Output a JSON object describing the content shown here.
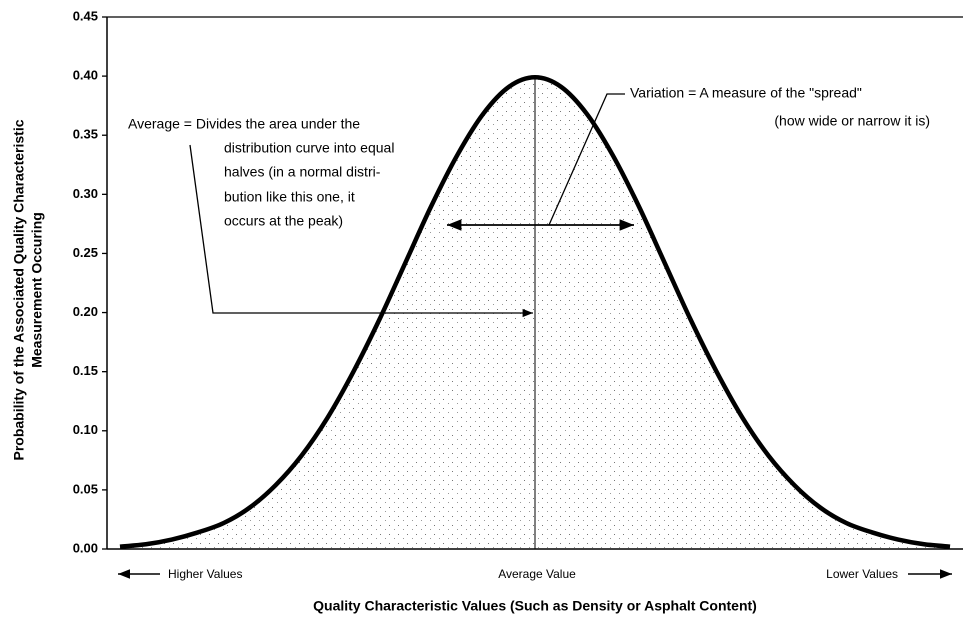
{
  "chart_data": {
    "type": "line",
    "x_label": "Quality Characteristic Values (Such as Density or Asphalt Content)",
    "y_label": [
      "Probability of the Associated Quality Characteristic",
      "Measurement Occuring"
    ],
    "x": [
      -3.2,
      -3.0,
      -2.8,
      -2.6,
      -2.4,
      -2.2,
      -2.0,
      -1.8,
      -1.6,
      -1.4,
      -1.2,
      -1.0,
      -0.8,
      -0.6,
      -0.4,
      -0.2,
      0,
      0.2,
      0.4,
      0.6,
      0.8,
      1.0,
      1.2,
      1.4,
      1.6,
      1.8,
      2.0,
      2.2,
      2.4,
      2.6,
      2.8,
      3.0,
      3.2
    ],
    "series": [
      {
        "color": "#000000",
        "values": [
          0.002,
          0.004,
          0.008,
          0.014,
          0.022,
          0.035,
          0.054,
          0.079,
          0.111,
          0.15,
          0.194,
          0.242,
          0.29,
          0.333,
          0.368,
          0.391,
          0.399,
          0.391,
          0.368,
          0.333,
          0.29,
          0.242,
          0.194,
          0.15,
          0.111,
          0.079,
          0.054,
          0.035,
          0.022,
          0.014,
          0.008,
          0.004,
          0.002
        ]
      }
    ],
    "xlim": [
      -3.3,
      3.3
    ],
    "ylim": [
      0,
      0.45
    ],
    "yticks": [
      {
        "value": 0,
        "label": "0.00"
      },
      {
        "value": 0.05,
        "label": "0.05"
      },
      {
        "value": 0.1,
        "label": "0.10"
      },
      {
        "value": 0.15,
        "label": "0.15"
      },
      {
        "value": 0.2,
        "label": "0.20"
      },
      {
        "value": 0.25,
        "label": "0.25"
      },
      {
        "value": 0.3,
        "label": "0.30"
      },
      {
        "value": 0.35,
        "label": "0.35"
      },
      {
        "value": 0.4,
        "label": "0.40"
      },
      {
        "value": 0.45,
        "label": "0.45"
      }
    ],
    "axis_notes": [
      "Higher Values",
      "Average Value",
      "Lower Values"
    ],
    "annotations": {
      "average": [
        "Average = Divides the area under the",
        "distribution curve into equal",
        "halves (in a normal distri-",
        "bution like this one, it",
        "occurs at the peak)"
      ],
      "variation": [
        "Variation = A measure of the \"spread\"",
        "(how wide or narrow it is)"
      ]
    }
  }
}
